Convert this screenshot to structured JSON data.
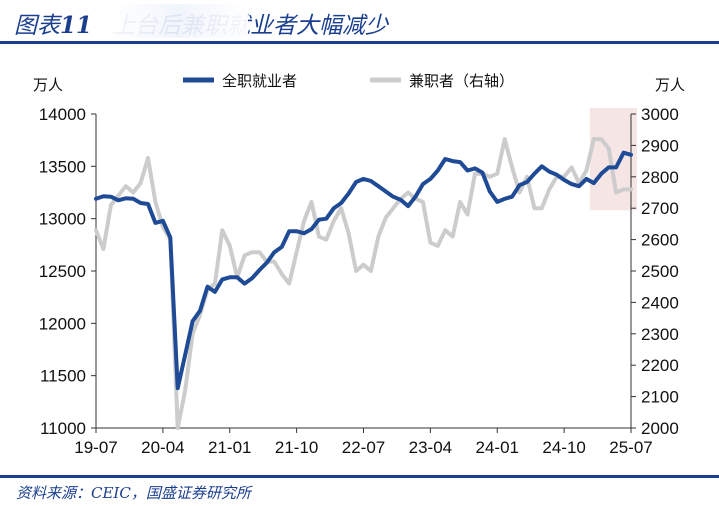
{
  "header": {
    "figure_label": "图表",
    "figure_number": "11",
    "title_text": "上台后兼职就业者大幅减少"
  },
  "footer": {
    "source": "资料来源：CEIC，国盛证券研究所"
  },
  "colors": {
    "accent": "#1b3f8f",
    "fulltime": "#1e4a96",
    "parttime": "#cccccc",
    "highlight": "#f3dcdc"
  },
  "chart_data": {
    "type": "line",
    "left_unit": "万人",
    "right_unit": "万人",
    "x_tick_labels": [
      "19-07",
      "20-04",
      "21-01",
      "21-10",
      "22-07",
      "23-04",
      "24-01",
      "24-10",
      "25-07"
    ],
    "left_axis": {
      "min": 11000,
      "max": 14000,
      "ticks": [
        11000,
        11500,
        12000,
        12500,
        13000,
        13500,
        14000
      ]
    },
    "right_axis": {
      "min": 2000,
      "max": 3000,
      "ticks": [
        2000,
        2100,
        2200,
        2300,
        2400,
        2500,
        2600,
        2700,
        2800,
        2900,
        3000
      ]
    },
    "highlight": {
      "from": "25-02",
      "to": "25-07",
      "axis": "right",
      "ymin": 2700,
      "ymax": 3000
    },
    "series": [
      {
        "name": "全职就业者",
        "axis": "left",
        "points": [
          [
            "19-07",
            13190
          ],
          [
            "19-08",
            13215
          ],
          [
            "19-09",
            13210
          ],
          [
            "19-10",
            13175
          ],
          [
            "19-11",
            13195
          ],
          [
            "19-12",
            13190
          ],
          [
            "20-01",
            13150
          ],
          [
            "20-02",
            13140
          ],
          [
            "20-03",
            12960
          ],
          [
            "20-04",
            12980
          ],
          [
            "20-05",
            12820
          ],
          [
            "20-06",
            11380
          ],
          [
            "20-07",
            11700
          ],
          [
            "20-08",
            12020
          ],
          [
            "20-09",
            12120
          ],
          [
            "20-10",
            12350
          ],
          [
            "20-11",
            12300
          ],
          [
            "20-12",
            12420
          ],
          [
            "21-01",
            12440
          ],
          [
            "21-02",
            12440
          ],
          [
            "21-03",
            12380
          ],
          [
            "21-04",
            12430
          ],
          [
            "21-05",
            12510
          ],
          [
            "21-06",
            12580
          ],
          [
            "21-07",
            12680
          ],
          [
            "21-08",
            12730
          ],
          [
            "21-09",
            12880
          ],
          [
            "21-10",
            12880
          ],
          [
            "21-11",
            12860
          ],
          [
            "21-12",
            12900
          ],
          [
            "22-01",
            12990
          ],
          [
            "22-02",
            13000
          ],
          [
            "22-03",
            13100
          ],
          [
            "22-04",
            13150
          ],
          [
            "22-05",
            13240
          ],
          [
            "22-06",
            13350
          ],
          [
            "22-07",
            13380
          ],
          [
            "22-08",
            13360
          ],
          [
            "22-09",
            13310
          ],
          [
            "22-10",
            13260
          ],
          [
            "22-11",
            13210
          ],
          [
            "22-12",
            13180
          ],
          [
            "23-01",
            13120
          ],
          [
            "23-02",
            13210
          ],
          [
            "23-03",
            13330
          ],
          [
            "23-04",
            13380
          ],
          [
            "23-05",
            13460
          ],
          [
            "23-06",
            13570
          ],
          [
            "23-07",
            13550
          ],
          [
            "23-08",
            13540
          ],
          [
            "23-09",
            13460
          ],
          [
            "23-10",
            13480
          ],
          [
            "23-11",
            13440
          ],
          [
            "23-12",
            13260
          ],
          [
            "24-01",
            13160
          ],
          [
            "24-02",
            13190
          ],
          [
            "24-03",
            13210
          ],
          [
            "24-04",
            13320
          ],
          [
            "24-05",
            13350
          ],
          [
            "24-06",
            13430
          ],
          [
            "24-07",
            13500
          ],
          [
            "24-08",
            13450
          ],
          [
            "24-09",
            13420
          ],
          [
            "24-10",
            13370
          ],
          [
            "24-11",
            13330
          ],
          [
            "24-12",
            13310
          ],
          [
            "25-01",
            13380
          ],
          [
            "25-02",
            13340
          ],
          [
            "25-03",
            13430
          ],
          [
            "25-04",
            13490
          ],
          [
            "25-05",
            13490
          ],
          [
            "25-06",
            13630
          ],
          [
            "25-07",
            13610
          ]
        ]
      },
      {
        "name": "兼职者（右轴）",
        "axis": "right",
        "points": [
          [
            "19-07",
            2630
          ],
          [
            "19-08",
            2570
          ],
          [
            "19-09",
            2710
          ],
          [
            "19-10",
            2740
          ],
          [
            "19-11",
            2770
          ],
          [
            "19-12",
            2750
          ],
          [
            "20-01",
            2780
          ],
          [
            "20-02",
            2860
          ],
          [
            "20-03",
            2720
          ],
          [
            "20-04",
            2640
          ],
          [
            "20-05",
            2600
          ],
          [
            "20-06",
            2000
          ],
          [
            "20-07",
            2120
          ],
          [
            "20-08",
            2300
          ],
          [
            "20-09",
            2360
          ],
          [
            "20-10",
            2440
          ],
          [
            "20-11",
            2460
          ],
          [
            "20-12",
            2630
          ],
          [
            "21-01",
            2580
          ],
          [
            "21-02",
            2480
          ],
          [
            "21-03",
            2550
          ],
          [
            "21-04",
            2560
          ],
          [
            "21-05",
            2560
          ],
          [
            "21-06",
            2530
          ],
          [
            "21-07",
            2530
          ],
          [
            "21-08",
            2490
          ],
          [
            "21-09",
            2460
          ],
          [
            "21-10",
            2560
          ],
          [
            "21-11",
            2660
          ],
          [
            "21-12",
            2720
          ],
          [
            "22-01",
            2610
          ],
          [
            "22-02",
            2600
          ],
          [
            "22-03",
            2660
          ],
          [
            "22-04",
            2700
          ],
          [
            "22-05",
            2620
          ],
          [
            "22-06",
            2500
          ],
          [
            "22-07",
            2520
          ],
          [
            "22-08",
            2500
          ],
          [
            "22-09",
            2610
          ],
          [
            "22-10",
            2670
          ],
          [
            "22-11",
            2700
          ],
          [
            "22-12",
            2730
          ],
          [
            "23-01",
            2750
          ],
          [
            "23-02",
            2730
          ],
          [
            "23-03",
            2720
          ],
          [
            "23-04",
            2590
          ],
          [
            "23-05",
            2580
          ],
          [
            "23-06",
            2630
          ],
          [
            "23-07",
            2610
          ],
          [
            "23-08",
            2720
          ],
          [
            "23-09",
            2680
          ],
          [
            "23-10",
            2810
          ],
          [
            "23-11",
            2810
          ],
          [
            "23-12",
            2800
          ],
          [
            "24-01",
            2810
          ],
          [
            "24-02",
            2920
          ],
          [
            "24-03",
            2830
          ],
          [
            "24-04",
            2750
          ],
          [
            "24-05",
            2800
          ],
          [
            "24-06",
            2700
          ],
          [
            "24-07",
            2700
          ],
          [
            "24-08",
            2760
          ],
          [
            "24-09",
            2800
          ],
          [
            "24-10",
            2800
          ],
          [
            "24-11",
            2830
          ],
          [
            "24-12",
            2780
          ],
          [
            "25-01",
            2820
          ],
          [
            "25-02",
            2920
          ],
          [
            "25-03",
            2920
          ],
          [
            "25-04",
            2890
          ],
          [
            "25-05",
            2750
          ],
          [
            "25-06",
            2760
          ],
          [
            "25-07",
            2760
          ]
        ]
      }
    ]
  }
}
